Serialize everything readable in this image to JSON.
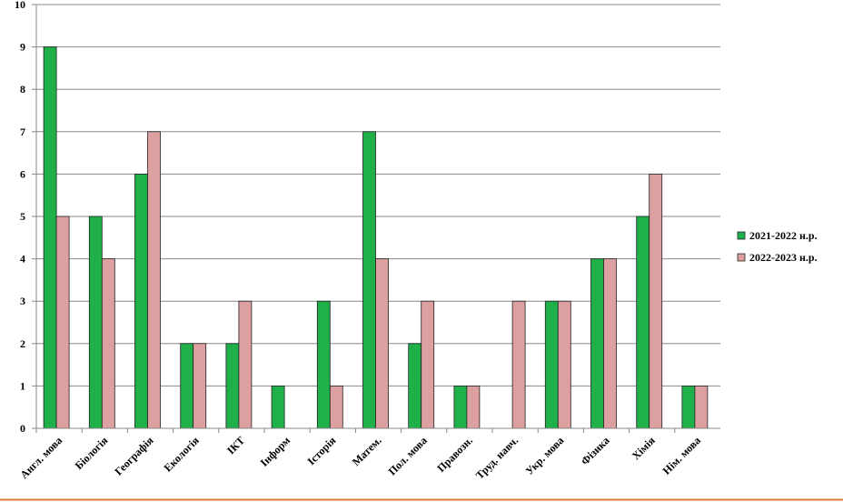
{
  "chart_data": {
    "type": "bar",
    "categories": [
      "Англ. мова",
      "Біологія",
      "Географія",
      "Екологія",
      "ІКТ",
      "Інформ",
      "Історія",
      "Матем.",
      "Пол. мова",
      "Правозн.",
      "Труд. навч.",
      "Укр. мова",
      "Фізика",
      "Хімія",
      "Нім. мова"
    ],
    "series": [
      {
        "name": "2021-2022 н.р.",
        "color": "#1fb04a",
        "values": [
          9,
          5,
          6,
          2,
          2,
          1,
          3,
          7,
          2,
          1,
          0,
          3,
          4,
          5,
          1
        ]
      },
      {
        "name": "2022-2023 н.р.",
        "color": "#dca0a0",
        "values": [
          5,
          4,
          7,
          2,
          3,
          0,
          1,
          4,
          3,
          1,
          3,
          3,
          4,
          6,
          1
        ]
      }
    ],
    "ylim": [
      0,
      10
    ],
    "yticks": [
      0,
      1,
      2,
      3,
      4,
      5,
      6,
      7,
      8,
      9,
      10
    ],
    "grid": true,
    "legend": "right"
  }
}
